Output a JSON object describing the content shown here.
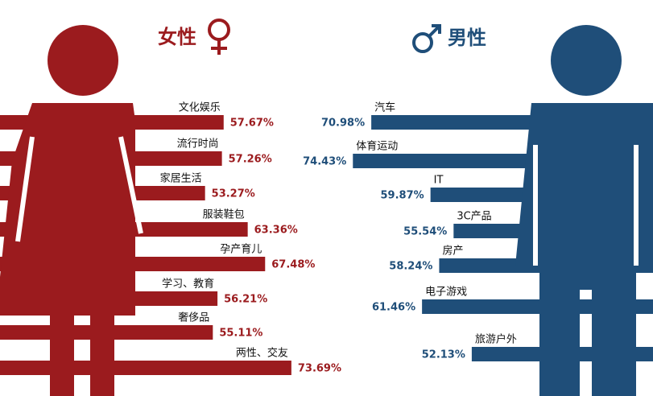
{
  "chart_data": [
    {
      "type": "bar",
      "orientation": "horizontal",
      "title": "女性",
      "color": "#9b1b1e",
      "categories": [
        "文化娱乐",
        "流行时尚",
        "家居生活",
        "服装鞋包",
        "孕产育儿",
        "学习、教育",
        "奢侈品",
        "两性、交友"
      ],
      "values": [
        57.67,
        57.26,
        53.27,
        63.36,
        67.48,
        56.21,
        55.11,
        73.69
      ],
      "value_labels": [
        "57.67%",
        "57.26%",
        "53.27%",
        "63.36%",
        "67.48%",
        "56.21%",
        "55.11%",
        "73.69%"
      ]
    },
    {
      "type": "bar",
      "orientation": "horizontal",
      "title": "男性",
      "color": "#1f4e79",
      "categories": [
        "汽车",
        "体育运动",
        "IT",
        "3C产品",
        "房产",
        "电子游戏",
        "旅游户外"
      ],
      "values": [
        70.98,
        74.43,
        59.87,
        55.54,
        58.24,
        61.46,
        52.13
      ],
      "value_labels": [
        "70.98%",
        "74.43%",
        "59.87%",
        "55.54%",
        "58.24%",
        "61.46%",
        "52.13%"
      ]
    }
  ]
}
